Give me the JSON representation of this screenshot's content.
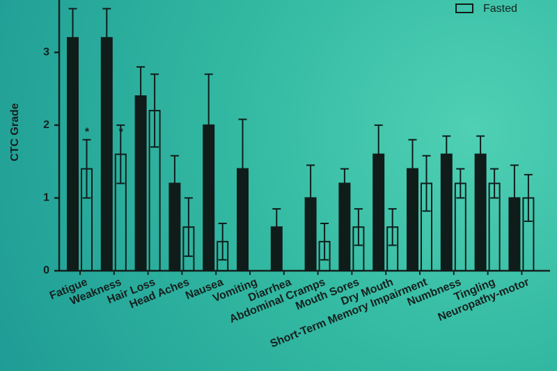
{
  "chart_data": {
    "type": "bar",
    "y_label": "CTC Grade",
    "categories": [
      "Fatigue",
      "Weakness",
      "Hair Loss",
      "Head Aches",
      "Nausea",
      "Vomiting",
      "Diarrhea",
      "Abdominal Cramps",
      "Mouth Sores",
      "Dry Mouth",
      "Short-Term Memory Impairment",
      "Numbness",
      "Tingling",
      "Neuropathy-motor"
    ],
    "series": [
      {
        "color": "#0f1c1a",
        "filled": true,
        "values": [
          3.2,
          3.2,
          2.4,
          1.2,
          2.0,
          1.4,
          0.6,
          1.0,
          1.2,
          1.6,
          1.4,
          1.6,
          1.6,
          1.0
        ],
        "errors": [
          0.4,
          0.4,
          0.4,
          0.38,
          0.7,
          0.68,
          0.25,
          0.45,
          0.2,
          0.4,
          0.4,
          0.25,
          0.25,
          0.45
        ]
      },
      {
        "name": "Fasted",
        "color": "#0f1c1a",
        "filled": false,
        "values": [
          1.4,
          1.6,
          2.2,
          0.6,
          0.4,
          0,
          0,
          0.4,
          0.6,
          0.6,
          1.2,
          1.2,
          1.2,
          1.0
        ],
        "errors": [
          0.4,
          0.4,
          0.5,
          0.4,
          0.25,
          null,
          null,
          0.25,
          0.25,
          0.25,
          0.38,
          0.2,
          0.2,
          0.32
        ]
      }
    ],
    "significance": [
      "*",
      "*",
      null,
      null,
      null,
      null,
      null,
      null,
      null,
      null,
      null,
      null,
      null,
      null
    ],
    "ylim": [
      0,
      3.7
    ],
    "yticks": [
      0,
      1,
      2,
      3
    ],
    "grid": false,
    "legend": "top-right"
  }
}
